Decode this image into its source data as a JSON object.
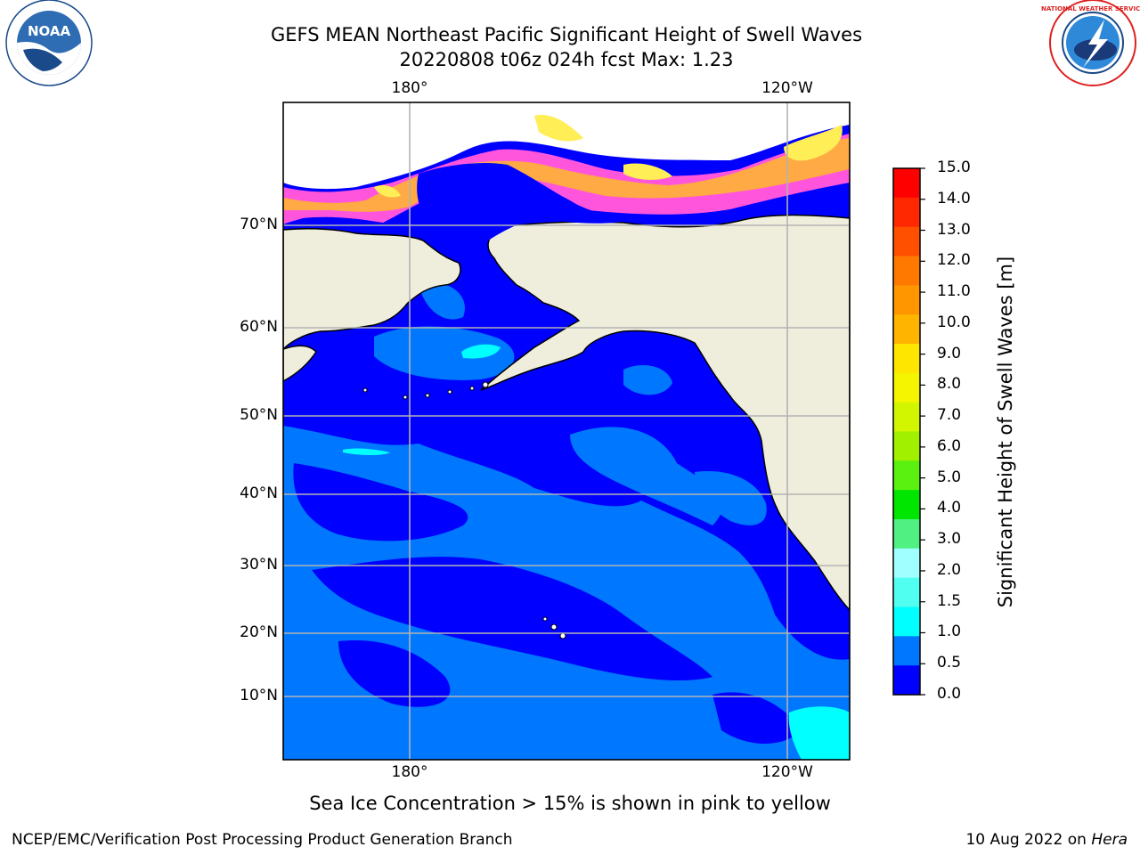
{
  "header": {
    "title_line1": "GEFS MEAN Northeast Pacific Significant Height of Swell Waves",
    "title_line2": "20220808 t06z 024h fcst   Max: 1.23"
  },
  "map": {
    "lon_labels_top": [
      "180°",
      "120°W"
    ],
    "lon_labels_bottom": [
      "180°",
      "120°W"
    ],
    "lat_labels": [
      "70°N",
      "60°N",
      "50°N",
      "40°N",
      "30°N",
      "20°N",
      "10°N"
    ],
    "colors": {
      "land": "#efeedd",
      "ocean_low": "#0000ff",
      "ocean_mid": "#0077ff",
      "ocean_high": "#00ffff",
      "ice_pink": "#ff55dd",
      "ice_orange": "#ffaa44",
      "ice_yellow": "#ffee55"
    }
  },
  "colorbar": {
    "ticks": [
      "15.0",
      "14.0",
      "13.0",
      "12.0",
      "11.0",
      "10.0",
      "9.0",
      "8.0",
      "7.0",
      "6.0",
      "5.0",
      "4.0",
      "3.0",
      "2.0",
      "1.5",
      "1.0",
      "0.5",
      "0.0"
    ],
    "colors_top_to_bottom": [
      "#ff0000",
      "#ff2800",
      "#ff5000",
      "#ff7800",
      "#ff9600",
      "#ffb400",
      "#ffe600",
      "#f5f500",
      "#d2f500",
      "#a0f000",
      "#5af00f",
      "#00e600",
      "#50f082",
      "#a0ffff",
      "#50fff0",
      "#00ffff",
      "#0077ff",
      "#0000ff"
    ],
    "label": "Significant Height of Swell Waves [m]"
  },
  "footer": {
    "note": "Sea Ice Concentration > 15% is shown in pink to yellow",
    "left": "NCEP/EMC/Verification Post Processing Product Generation Branch",
    "right_prefix": "10 Aug 2022 on ",
    "right_host": "Hera"
  },
  "logos": {
    "noaa_text": "NOAA",
    "nws_text": "NATIONAL WEATHER SERVICE"
  }
}
